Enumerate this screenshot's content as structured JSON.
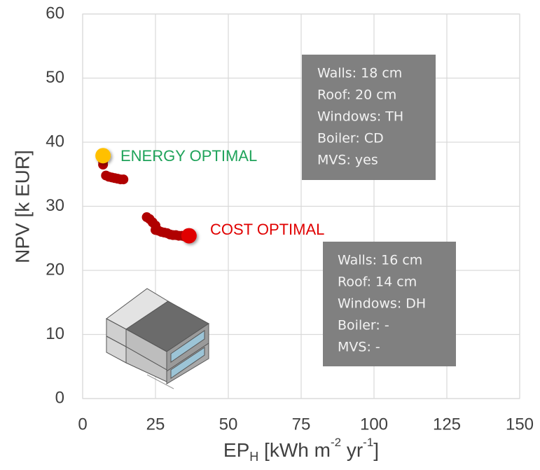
{
  "chart_data": {
    "type": "scatter",
    "x_label": [
      "EP",
      "H",
      " [kWh m",
      "-2",
      " yr",
      "-1",
      "]"
    ],
    "y_label": "NPV [k EUR]",
    "xlim": [
      0,
      150
    ],
    "xticks": [
      0,
      25,
      50,
      75,
      100,
      125,
      150
    ],
    "ylim": [
      0,
      60
    ],
    "yticks": [
      0,
      10,
      20,
      30,
      40,
      50,
      60
    ],
    "grid": true,
    "series": [
      {
        "color": "#b00000",
        "x": [
          7,
          7,
          8,
          9,
          10,
          11,
          12,
          13,
          14,
          22,
          23,
          24,
          25,
          25,
          26,
          27,
          28,
          29,
          30,
          31,
          32,
          33,
          34,
          35
        ],
        "values": [
          37,
          36.5,
          34.8,
          34.6,
          34.5,
          34.4,
          34.3,
          34.2,
          34.2,
          28.3,
          28,
          27.5,
          27,
          26.3,
          26.2,
          26,
          25.9,
          25.8,
          25.6,
          25.5,
          25.5,
          25.4,
          25.4,
          25.3
        ]
      },
      {
        "color": "#ffc000",
        "x": [
          7
        ],
        "values": [
          37.9
        ]
      },
      {
        "color": "#e00000",
        "x": [
          36.5
        ],
        "values": [
          25.4
        ]
      }
    ],
    "annotations": [
      {
        "text": "ENERGY OPTIMAL",
        "color": "#1fa35a"
      },
      {
        "text": "COST OPTIMAL",
        "color": "#e00000"
      }
    ],
    "info_boxes": [
      {
        "lines": [
          "Walls: 18 cm",
          "Roof: 20 cm",
          "Windows: TH",
          "Boiler: CD",
          "MVS: yes"
        ]
      },
      {
        "lines": [
          "Walls: 16 cm",
          "Roof: 14 cm",
          "Windows: DH",
          "Boiler: -",
          "MVS: -"
        ]
      }
    ]
  }
}
